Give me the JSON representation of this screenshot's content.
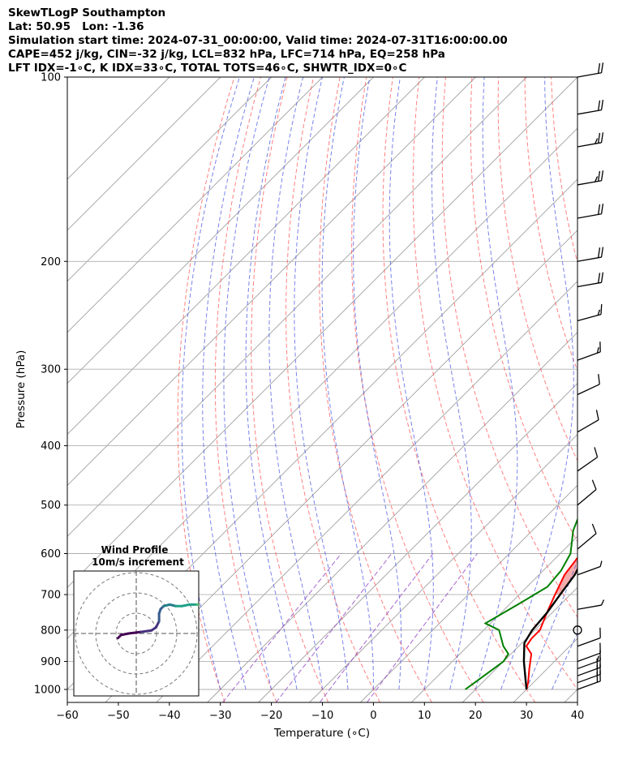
{
  "header": {
    "line1": "SkewTLogP Southampton",
    "line2": "Lat: 50.95   Lon: -1.36",
    "line3": "Simulation start time: 2024-07-31_00:00:00, Valid time: 2024-07-31T16:00:00.00",
    "line4": "CAPE=452 j/kg, CIN=-32 j/kg, LCL=832 hPa, LFC=714 hPa, EQ=258 hPa",
    "line5": "LFT IDX=-1∘C, K IDX=33∘C, TOTAL TOTS=46∘C, SHWTR_IDX=0∘C"
  },
  "hodograph": {
    "title": "Wind Profile",
    "subtitle": "10m/s increment"
  },
  "chart_data": {
    "type": "line",
    "subtype": "skew-t log-p",
    "xlabel": "Temperature (∘C)",
    "ylabel": "Pressure (hPa)",
    "xlim": [
      -60,
      40
    ],
    "ylim": [
      1050,
      100
    ],
    "y_scale": "log",
    "x_ticks": [
      "−60",
      "−50",
      "−40",
      "−30",
      "−20",
      "−10",
      "0",
      "10",
      "20",
      "30",
      "40"
    ],
    "y_ticks": [
      "1000",
      "900",
      "800",
      "700",
      "600",
      "500",
      "400",
      "300",
      "200",
      "100"
    ],
    "grid": true,
    "colors": {
      "temperature": "#ff0000",
      "dewpoint": "#008000",
      "parcel": "#000000",
      "cape_fill": "#6fa7d0",
      "cin_fill": "#f08080",
      "dry_adiabats": "#ff5555",
      "moist_adiabats": "#4a5ae0",
      "mixing_lines": "#9040c0",
      "isotherms": "#a0a0a0"
    },
    "series": [
      {
        "key": "temperature",
        "x": [
          30.0,
          29.0,
          26.5,
          24.0,
          21.5,
          21.0,
          21.0,
          19.0,
          17.0,
          15.0,
          14.0,
          12.5,
          10.0,
          7.5,
          5.0,
          3.0,
          0.5,
          -2.5,
          -4.0,
          -4.5,
          -4.0,
          -3.5,
          -2.5,
          -1.0,
          0.5,
          2.0,
          3.5,
          6.0,
          9.0,
          11.0,
          13.0,
          16.0
        ],
        "y": [
          1000,
          975,
          925,
          875,
          850,
          825,
          800,
          750,
          700,
          650,
          600,
          550,
          500,
          450,
          400,
          350,
          300,
          260,
          250,
          240,
          230,
          220,
          210,
          200,
          190,
          180,
          170,
          160,
          145,
          130,
          115,
          100
        ]
      },
      {
        "key": "dewpoint",
        "x": [
          18.0,
          18.5,
          19.0,
          20.0,
          19.5,
          17.0,
          13.0,
          9.0,
          12.0,
          14.0,
          13.5,
          12.0,
          8.0,
          5.0,
          4.0,
          3.5,
          1.5,
          -2.0,
          -5.0,
          -7.5,
          -8.0,
          -10.0,
          -12.5,
          -12.5,
          -12.0,
          -14.0,
          -15.0,
          -17.0,
          -18.0,
          -19.0,
          -20.0,
          -19.0,
          -16.0,
          -12.0,
          -9.0,
          -7.0,
          -5.0
        ],
        "y": [
          1000,
          975,
          950,
          900,
          875,
          850,
          800,
          780,
          720,
          680,
          640,
          600,
          550,
          500,
          480,
          450,
          400,
          350,
          310,
          290,
          270,
          250,
          240,
          230,
          220,
          200,
          190,
          180,
          170,
          160,
          148,
          140,
          130,
          122,
          115,
          108,
          100
        ]
      },
      {
        "key": "parcel",
        "x": [
          30.0,
          24.0,
          20.5,
          19.5,
          19.0,
          18.0,
          17.0,
          15.0,
          13.0,
          10.0,
          6.5,
          2.0,
          -4.0,
          -10.0,
          -15.0,
          -19.0,
          -23.0,
          -27.0,
          -31.0
        ],
        "y": [
          1000,
          900,
          840,
          800,
          750,
          700,
          650,
          600,
          550,
          500,
          450,
          400,
          350,
          300,
          258,
          230,
          200,
          150,
          100
        ]
      }
    ],
    "wind_barbs": [
      {
        "p": 1000,
        "speed_kt": 20,
        "dir_deg": 250
      },
      {
        "p": 975,
        "speed_kt": 20,
        "dir_deg": 250
      },
      {
        "p": 950,
        "speed_kt": 20,
        "dir_deg": 250
      },
      {
        "p": 925,
        "speed_kt": 15,
        "dir_deg": 250
      },
      {
        "p": 900,
        "speed_kt": 10,
        "dir_deg": 250
      },
      {
        "p": 850,
        "speed_kt": 10,
        "dir_deg": 250
      },
      {
        "p": 800,
        "speed_kt": 0,
        "dir_deg": 0
      },
      {
        "p": 740,
        "speed_kt": 5,
        "dir_deg": 260
      },
      {
        "p": 650,
        "speed_kt": 5,
        "dir_deg": 250
      },
      {
        "p": 590,
        "speed_kt": 10,
        "dir_deg": 230
      },
      {
        "p": 500,
        "speed_kt": 10,
        "dir_deg": 230
      },
      {
        "p": 440,
        "speed_kt": 10,
        "dir_deg": 235
      },
      {
        "p": 380,
        "speed_kt": 10,
        "dir_deg": 240
      },
      {
        "p": 330,
        "speed_kt": 10,
        "dir_deg": 245
      },
      {
        "p": 290,
        "speed_kt": 15,
        "dir_deg": 250
      },
      {
        "p": 250,
        "speed_kt": 15,
        "dir_deg": 255
      },
      {
        "p": 220,
        "speed_kt": 20,
        "dir_deg": 260
      },
      {
        "p": 200,
        "speed_kt": 20,
        "dir_deg": 260
      },
      {
        "p": 170,
        "speed_kt": 20,
        "dir_deg": 260
      },
      {
        "p": 150,
        "speed_kt": 25,
        "dir_deg": 260
      },
      {
        "p": 130,
        "speed_kt": 25,
        "dir_deg": 260
      },
      {
        "p": 115,
        "speed_kt": 20,
        "dir_deg": 260
      },
      {
        "p": 100,
        "speed_kt": 20,
        "dir_deg": 260
      }
    ],
    "hodograph_points": {
      "u": [
        -1.2,
        -1.0,
        -0.5,
        0.3,
        1.0,
        1.3,
        1.5,
        1.5,
        1.6,
        1.8,
        2.2,
        2.6,
        3.0,
        3.5,
        4.0,
        4.5,
        5.0,
        5.5,
        6.0,
        6.5,
        7.0,
        7.5,
        7.9
      ],
      "v": [
        -0.3,
        -0.1,
        0.0,
        0.1,
        0.2,
        0.4,
        0.8,
        1.3,
        1.6,
        1.8,
        1.9,
        1.8,
        1.8,
        1.9,
        1.9,
        1.8,
        1.8,
        1.7,
        1.6,
        1.5,
        1.5,
        1.3,
        1.3
      ],
      "ring_increment": 10,
      "max_ring": 3
    }
  }
}
